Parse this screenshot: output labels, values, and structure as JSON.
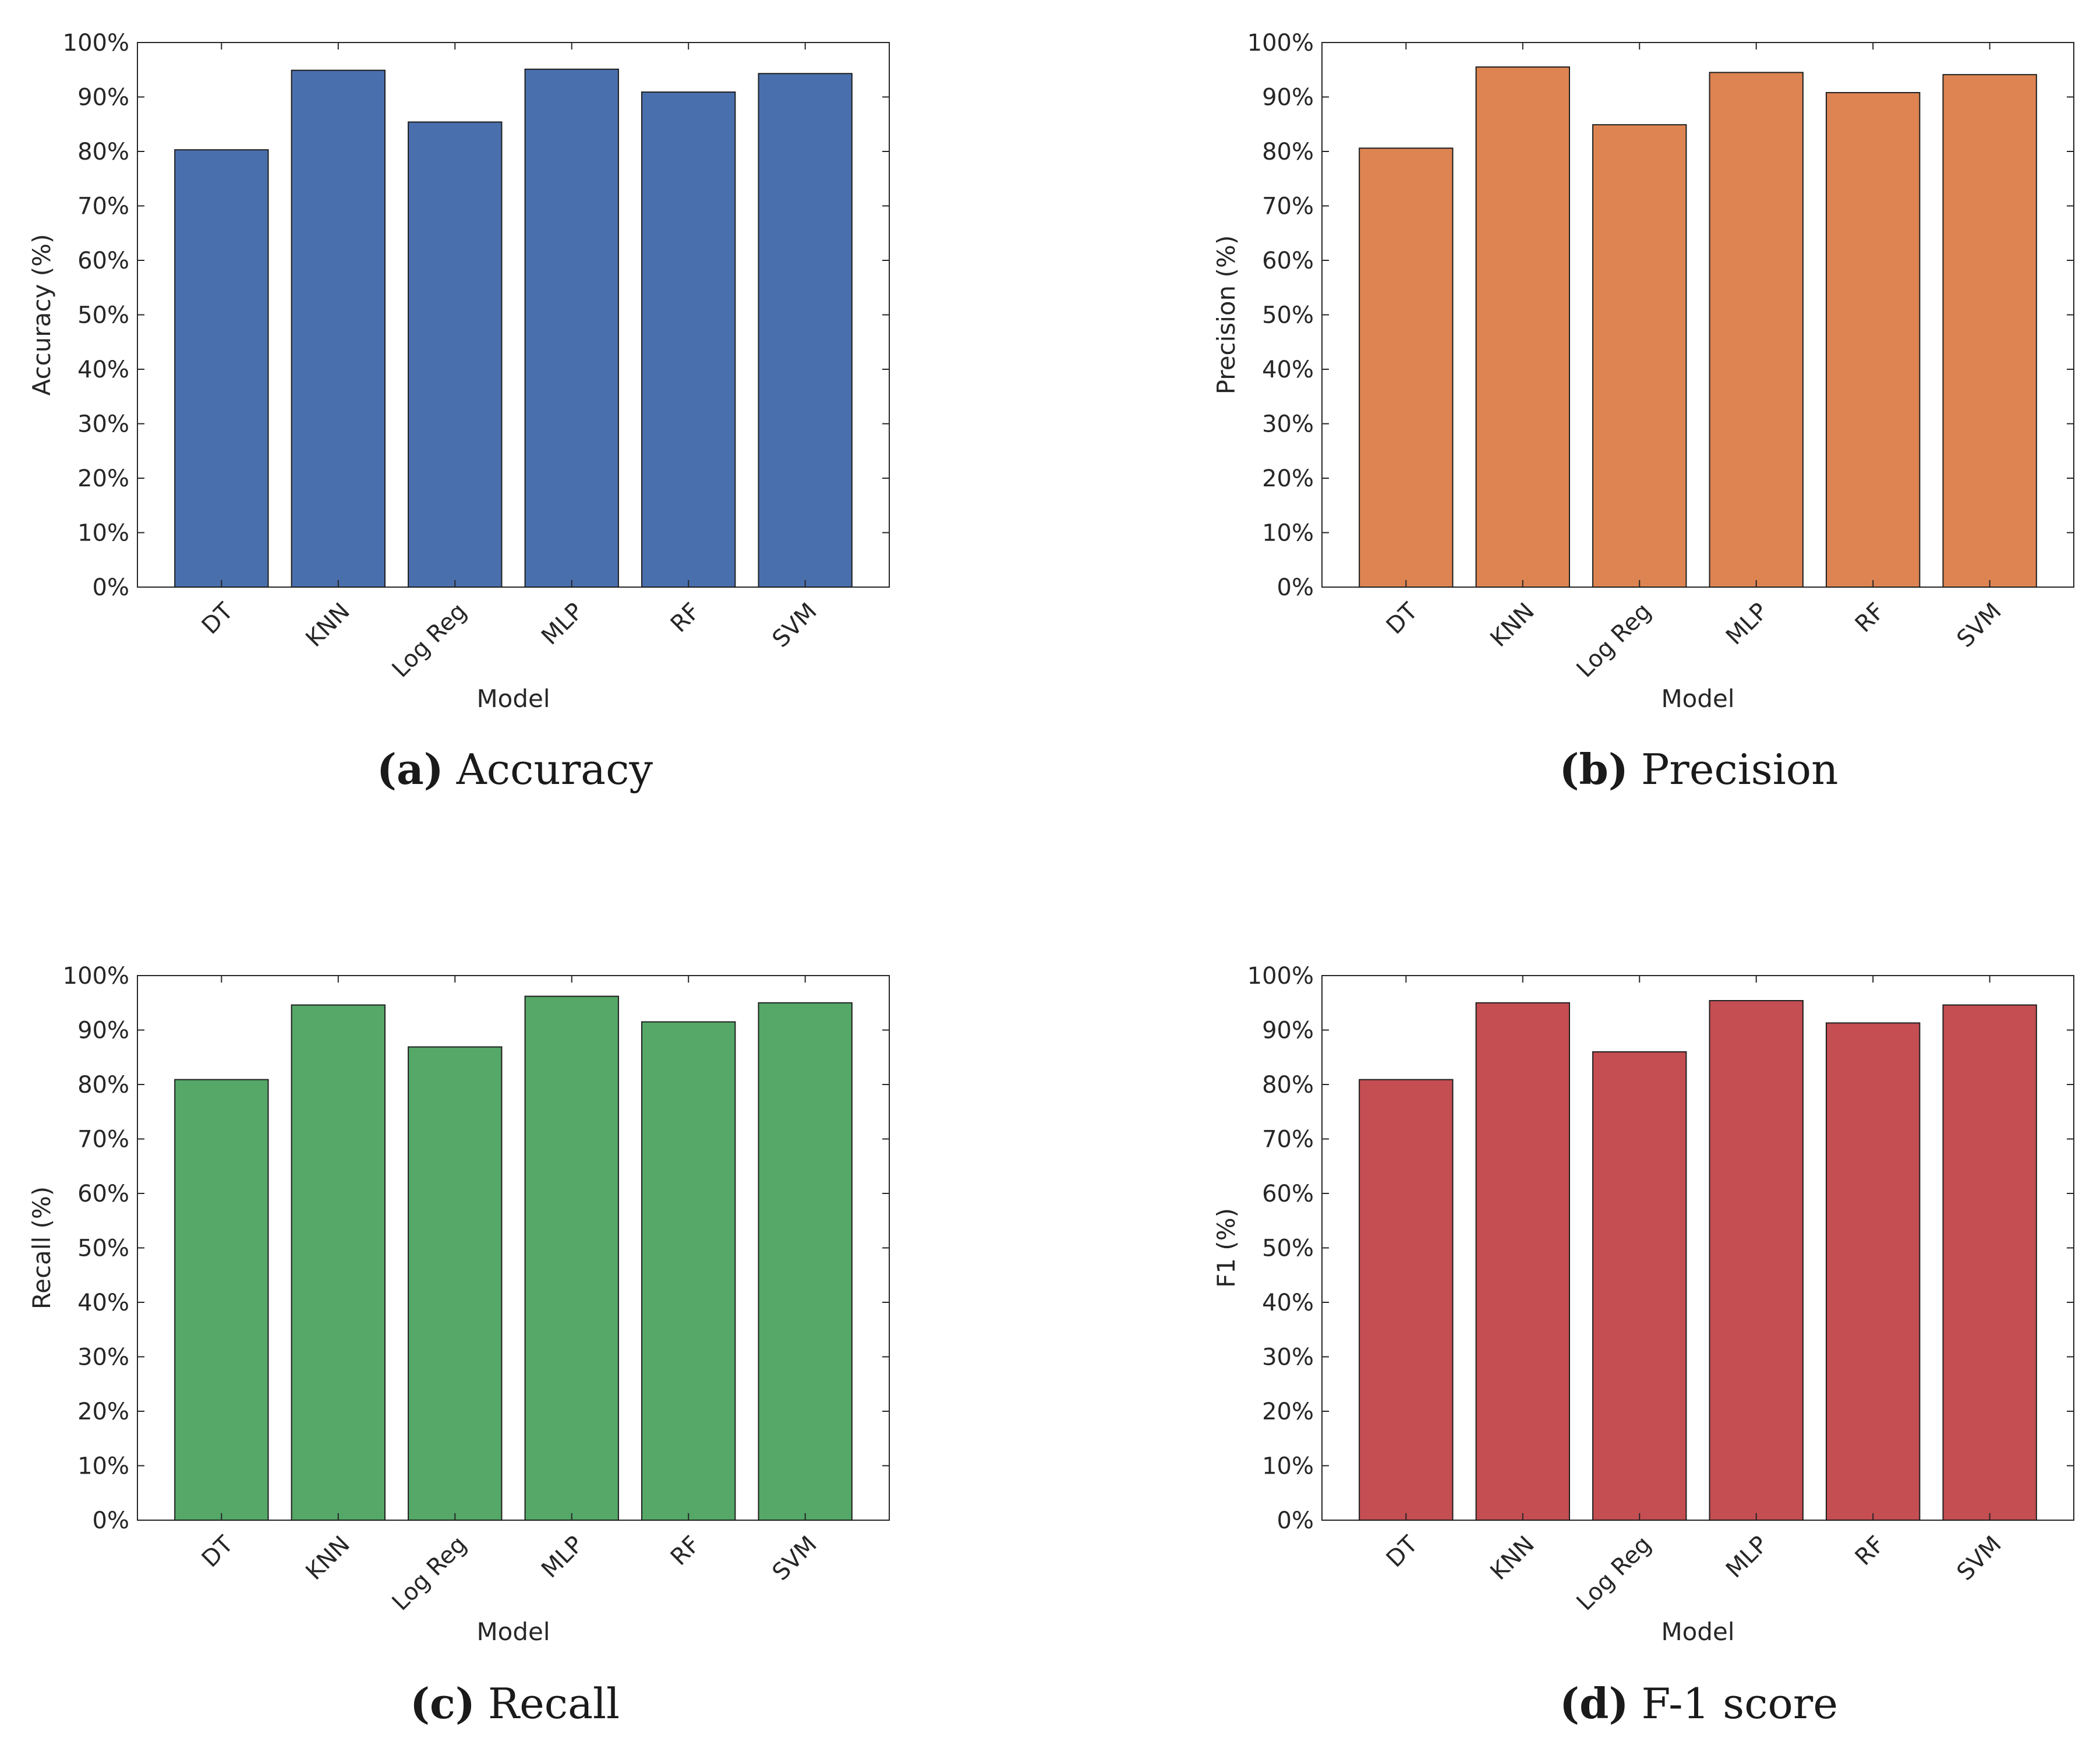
{
  "chart_data": [
    {
      "type": "bar",
      "categories": [
        "DT",
        "KNN",
        "Log Reg",
        "MLP",
        "RF",
        "SVM"
      ],
      "values": [
        80.3,
        94.9,
        85.4,
        95.1,
        90.9,
        94.3
      ],
      "ylabel": "Accuracy (%)",
      "xlabel": "Model",
      "ylim": [
        0,
        100
      ],
      "yticks": [
        "0%",
        "10%",
        "20%",
        "30%",
        "40%",
        "50%",
        "60%",
        "70%",
        "80%",
        "90%",
        "100%"
      ],
      "color": "#4a6fad",
      "grid": false,
      "caption": {
        "tag": "(a)",
        "text": "Accuracy"
      }
    },
    {
      "type": "bar",
      "categories": [
        "DT",
        "KNN",
        "Log Reg",
        "MLP",
        "RF",
        "SVM"
      ],
      "values": [
        80.6,
        95.5,
        84.9,
        94.5,
        90.8,
        94.1
      ],
      "ylabel": "Precision (%)",
      "xlabel": "Model",
      "ylim": [
        0,
        100
      ],
      "yticks": [
        "0%",
        "10%",
        "20%",
        "30%",
        "40%",
        "50%",
        "60%",
        "70%",
        "80%",
        "90%",
        "100%"
      ],
      "color": "#dd8452",
      "grid": false,
      "caption": {
        "tag": "(b)",
        "text": "Precision"
      }
    },
    {
      "type": "bar",
      "categories": [
        "DT",
        "KNN",
        "Log Reg",
        "MLP",
        "RF",
        "SVM"
      ],
      "values": [
        80.9,
        94.6,
        86.9,
        96.2,
        91.5,
        95.0
      ],
      "ylabel": "Recall (%)",
      "xlabel": "Model",
      "ylim": [
        0,
        100
      ],
      "yticks": [
        "0%",
        "10%",
        "20%",
        "30%",
        "40%",
        "50%",
        "60%",
        "70%",
        "80%",
        "90%",
        "100%"
      ],
      "color": "#55a868",
      "grid": false,
      "caption": {
        "tag": "(c)",
        "text": "Recall"
      }
    },
    {
      "type": "bar",
      "categories": [
        "DT",
        "KNN",
        "Log Reg",
        "MLP",
        "RF",
        "SVM"
      ],
      "values": [
        80.9,
        95.0,
        86.0,
        95.4,
        91.3,
        94.6
      ],
      "ylabel": "F1 (%)",
      "xlabel": "Model",
      "ylim": [
        0,
        100
      ],
      "yticks": [
        "0%",
        "10%",
        "20%",
        "30%",
        "40%",
        "50%",
        "60%",
        "70%",
        "80%",
        "90%",
        "100%"
      ],
      "color": "#c44e52",
      "grid": false,
      "caption": {
        "tag": "(d)",
        "text": "F-1 score"
      }
    }
  ]
}
